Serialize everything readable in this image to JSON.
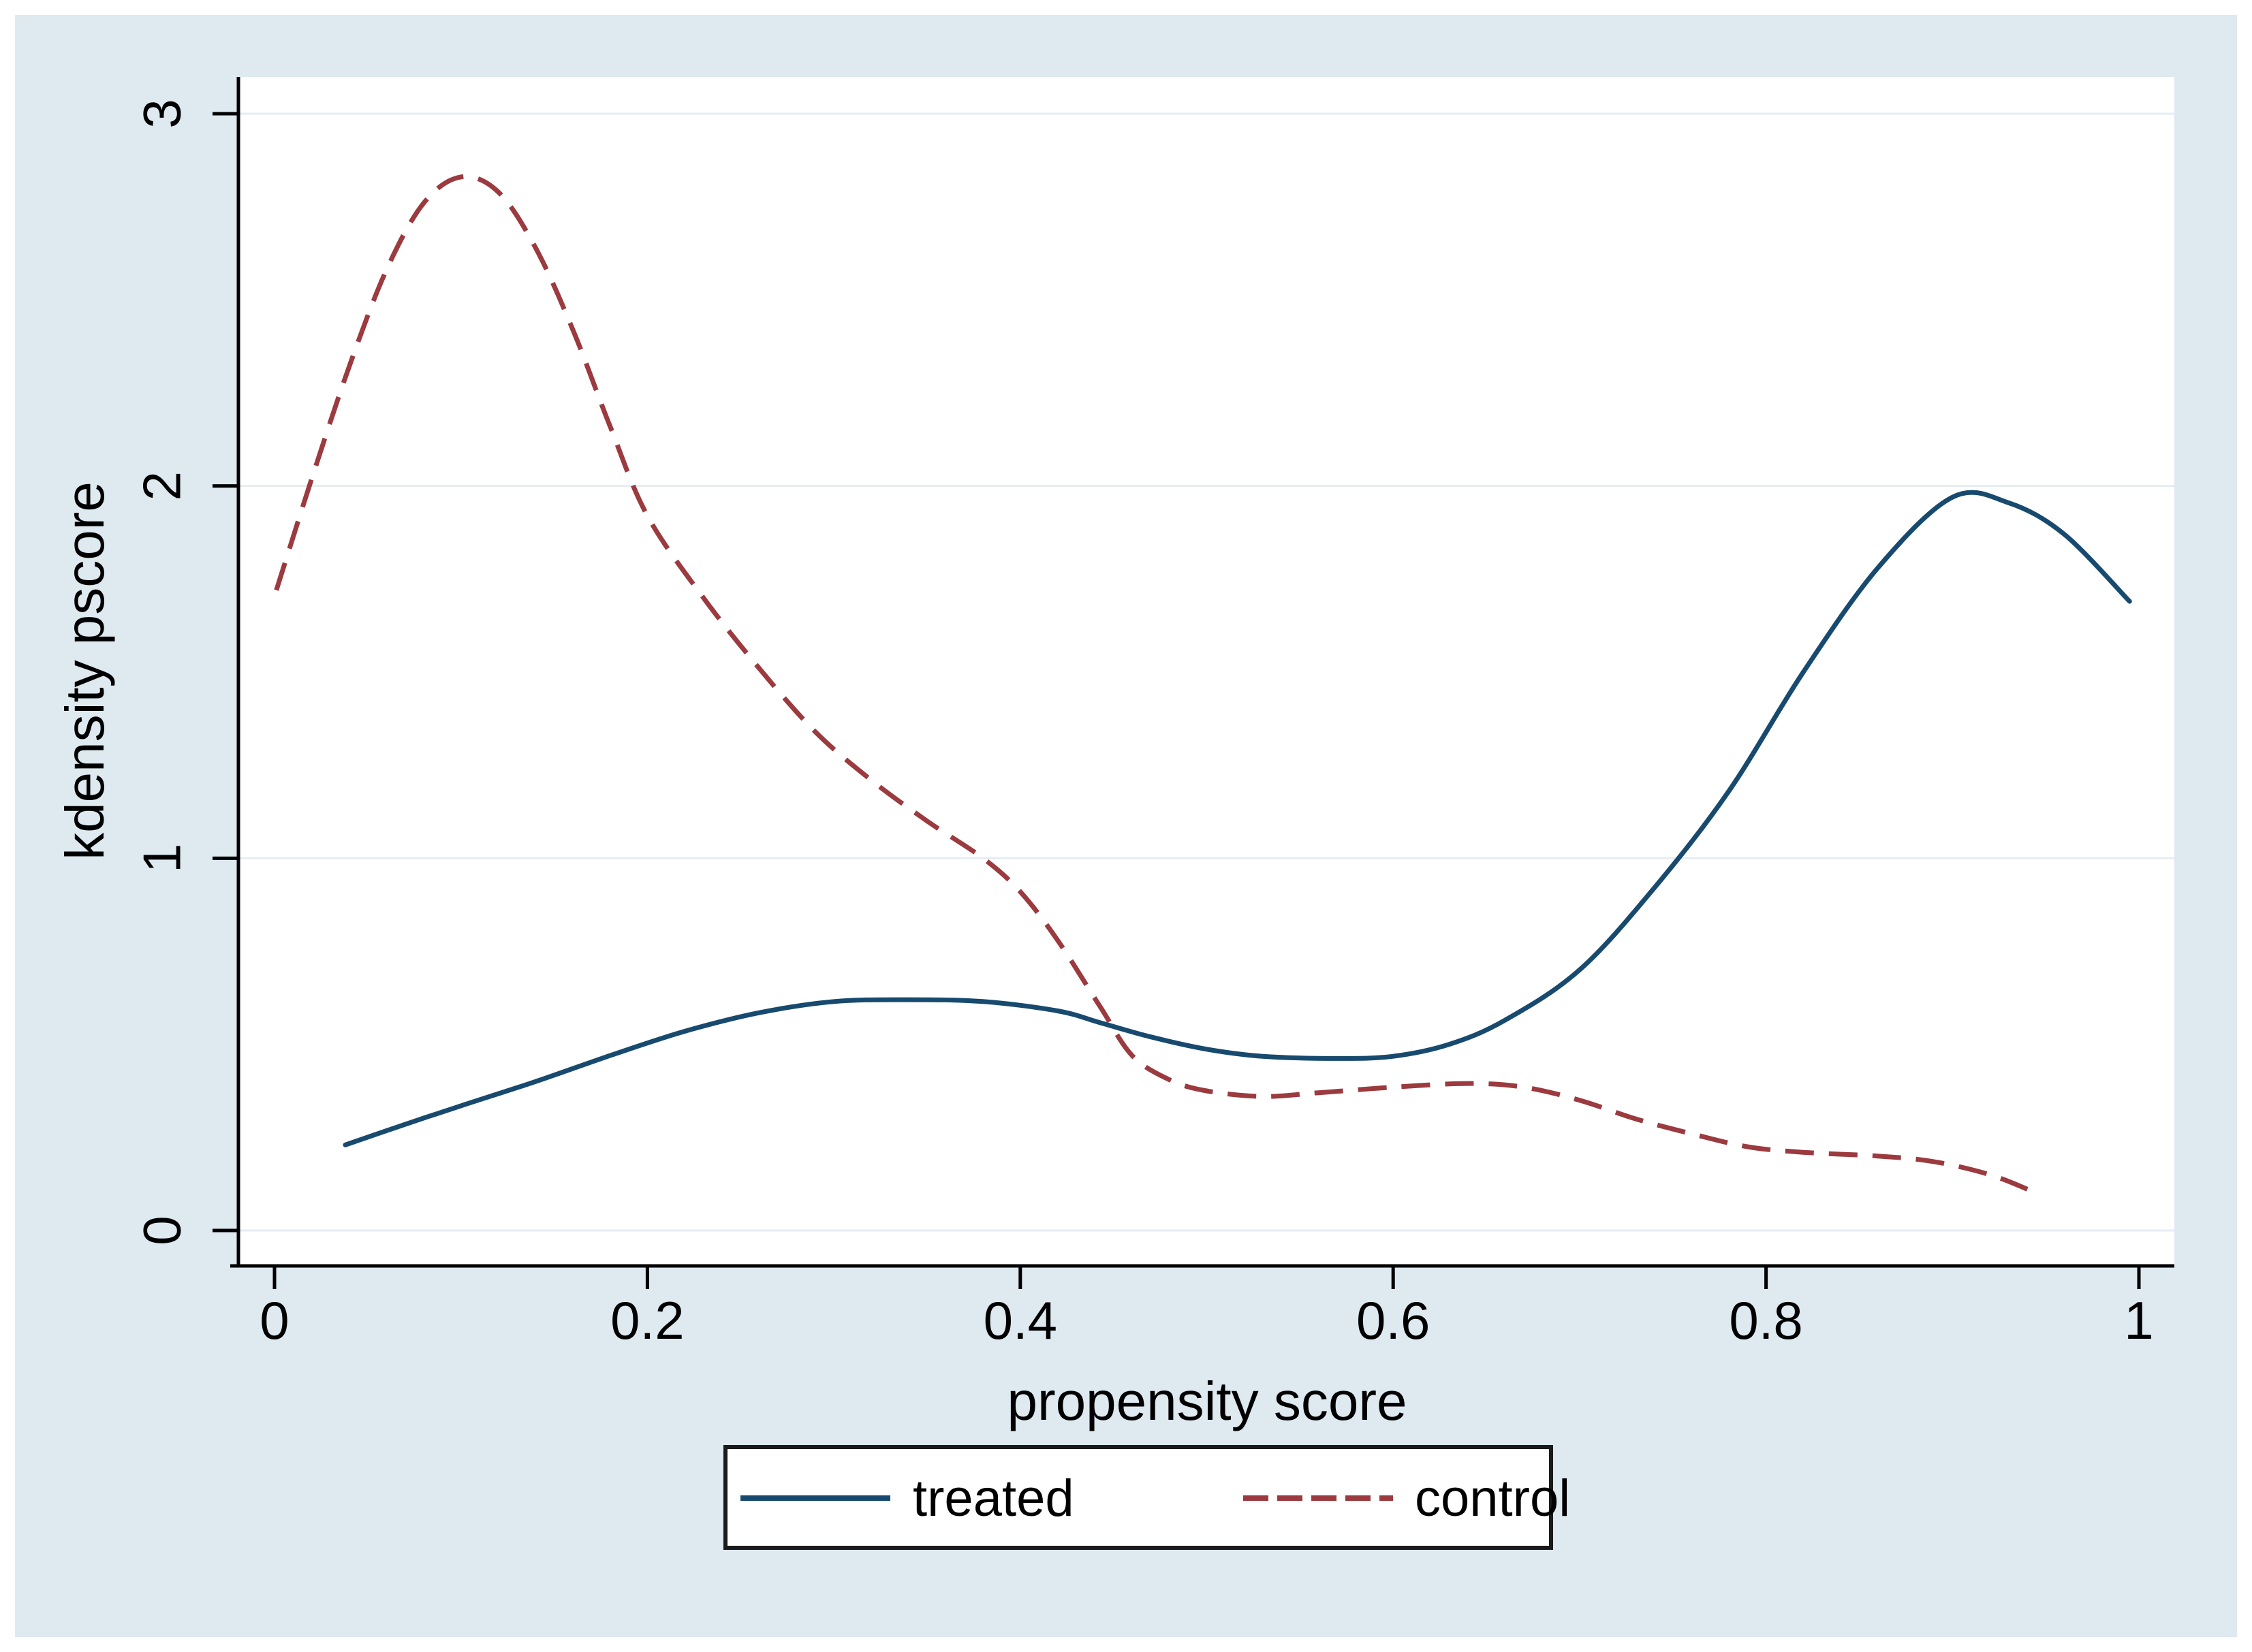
{
  "figure": {
    "background": "#ffffff",
    "panel_background": "#dee9f0",
    "plot_background": "#ffffff",
    "grid_color": "#e6edf2",
    "axis_color": "#000000",
    "text_color": "#000000",
    "legend_border_color": "#1a1a1a",
    "legend_background": "#ffffff"
  },
  "chart_data": {
    "type": "line",
    "title": "",
    "xlabel": "propensity score",
    "ylabel": "kdensity pscore",
    "xlim": [
      0,
      1
    ],
    "ylim": [
      0,
      3
    ],
    "x_tick_values": [
      0,
      0.2,
      0.4,
      0.6,
      0.8,
      1
    ],
    "x_tick_labels": [
      "0",
      "0.2",
      "0.4",
      "0.6",
      "0.8",
      "1"
    ],
    "y_tick_values": [
      0,
      1,
      2,
      3
    ],
    "y_tick_labels": [
      "0",
      "1",
      "2",
      "3"
    ],
    "grid": "horizontal-gridlines-only",
    "legend": {
      "position": "bottom-center",
      "entries": [
        {
          "label": "treated",
          "style": "solid",
          "color": "#174a6e"
        },
        {
          "label": "control",
          "style": "dashed",
          "color": "#9b3a3f"
        }
      ]
    },
    "series": [
      {
        "name": "treated",
        "color": "#174a6e",
        "line_style": "solid",
        "points": [
          [
            0.038,
            0.23
          ],
          [
            0.07,
            0.285
          ],
          [
            0.1,
            0.335
          ],
          [
            0.14,
            0.4
          ],
          [
            0.18,
            0.47
          ],
          [
            0.22,
            0.535
          ],
          [
            0.26,
            0.585
          ],
          [
            0.3,
            0.615
          ],
          [
            0.34,
            0.62
          ],
          [
            0.38,
            0.615
          ],
          [
            0.42,
            0.59
          ],
          [
            0.443,
            0.558
          ],
          [
            0.47,
            0.52
          ],
          [
            0.5,
            0.487
          ],
          [
            0.53,
            0.468
          ],
          [
            0.57,
            0.462
          ],
          [
            0.6,
            0.468
          ],
          [
            0.63,
            0.5
          ],
          [
            0.66,
            0.565
          ],
          [
            0.7,
            0.7
          ],
          [
            0.74,
            0.92
          ],
          [
            0.78,
            1.18
          ],
          [
            0.82,
            1.5
          ],
          [
            0.86,
            1.78
          ],
          [
            0.9,
            1.97
          ],
          [
            0.93,
            1.955
          ],
          [
            0.96,
            1.87
          ],
          [
            0.995,
            1.69
          ]
        ]
      },
      {
        "name": "control",
        "color": "#9b3a3f",
        "line_style": "dashed",
        "points": [
          [
            0.001,
            1.72
          ],
          [
            0.02,
            2.02
          ],
          [
            0.04,
            2.32
          ],
          [
            0.06,
            2.58
          ],
          [
            0.08,
            2.76
          ],
          [
            0.1,
            2.83
          ],
          [
            0.12,
            2.79
          ],
          [
            0.14,
            2.64
          ],
          [
            0.16,
            2.42
          ],
          [
            0.18,
            2.16
          ],
          [
            0.2,
            1.92
          ],
          [
            0.23,
            1.7
          ],
          [
            0.26,
            1.51
          ],
          [
            0.29,
            1.34
          ],
          [
            0.32,
            1.21
          ],
          [
            0.35,
            1.1
          ],
          [
            0.38,
            1.0
          ],
          [
            0.4,
            0.91
          ],
          [
            0.42,
            0.78
          ],
          [
            0.443,
            0.6
          ],
          [
            0.46,
            0.47
          ],
          [
            0.48,
            0.405
          ],
          [
            0.5,
            0.375
          ],
          [
            0.53,
            0.36
          ],
          [
            0.56,
            0.37
          ],
          [
            0.6,
            0.385
          ],
          [
            0.64,
            0.395
          ],
          [
            0.67,
            0.385
          ],
          [
            0.7,
            0.35
          ],
          [
            0.73,
            0.3
          ],
          [
            0.76,
            0.26
          ],
          [
            0.79,
            0.225
          ],
          [
            0.82,
            0.21
          ],
          [
            0.86,
            0.2
          ],
          [
            0.89,
            0.185
          ],
          [
            0.92,
            0.15
          ],
          [
            0.943,
            0.105
          ]
        ]
      }
    ]
  }
}
